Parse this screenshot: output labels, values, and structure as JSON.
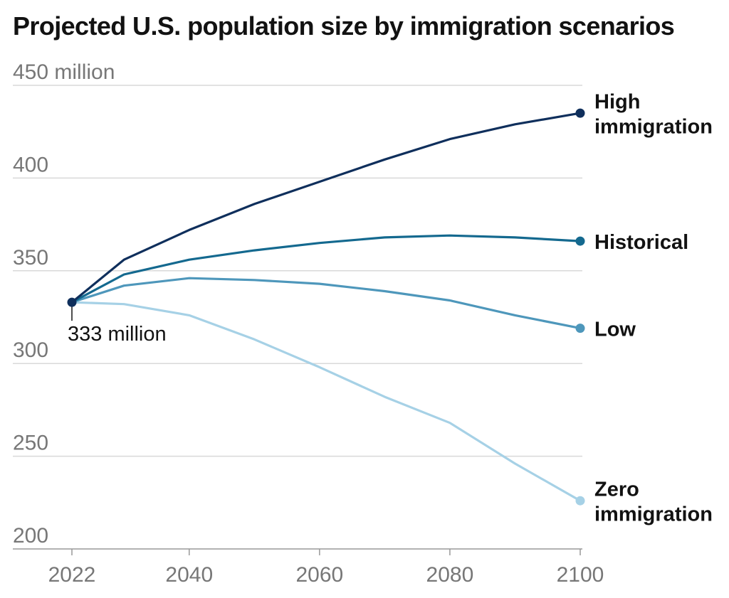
{
  "chart_data": {
    "type": "line",
    "title": "Projected U.S. population size by immigration scenarios",
    "y_unit_label": "450 million",
    "ylim": [
      200,
      450
    ],
    "xlim": [
      2022,
      2100
    ],
    "y_ticks": [
      "450 million",
      "400",
      "350",
      "300",
      "250",
      "200"
    ],
    "x_ticks": [
      "2022",
      "2040",
      "2060",
      "2080",
      "2100"
    ],
    "grid": true,
    "annotation": {
      "x": 2022,
      "y": 333,
      "text": "333 million"
    },
    "series": [
      {
        "name": "High immigration",
        "label_lines": [
          "High",
          "immigration"
        ],
        "color": "#0f2f5c",
        "x": [
          2022,
          2030,
          2040,
          2050,
          2060,
          2070,
          2080,
          2090,
          2100
        ],
        "values": [
          333,
          356,
          372,
          386,
          398,
          410,
          421,
          429,
          435
        ]
      },
      {
        "name": "Historical",
        "label_lines": [
          "Historical"
        ],
        "color": "#14698f",
        "x": [
          2022,
          2030,
          2040,
          2050,
          2060,
          2070,
          2080,
          2090,
          2100
        ],
        "values": [
          333,
          348,
          356,
          361,
          365,
          368,
          369,
          368,
          366
        ]
      },
      {
        "name": "Low",
        "label_lines": [
          "Low"
        ],
        "color": "#4e97bb",
        "x": [
          2022,
          2030,
          2040,
          2050,
          2060,
          2070,
          2080,
          2090,
          2100
        ],
        "values": [
          333,
          342,
          346,
          345,
          343,
          339,
          334,
          326,
          319
        ]
      },
      {
        "name": "Zero immigration",
        "label_lines": [
          "Zero",
          "immigration"
        ],
        "color": "#a6d1e6",
        "x": [
          2022,
          2030,
          2040,
          2050,
          2060,
          2070,
          2080,
          2090,
          2100
        ],
        "values": [
          333,
          332,
          326,
          313,
          298,
          282,
          268,
          246,
          226
        ]
      }
    ]
  }
}
